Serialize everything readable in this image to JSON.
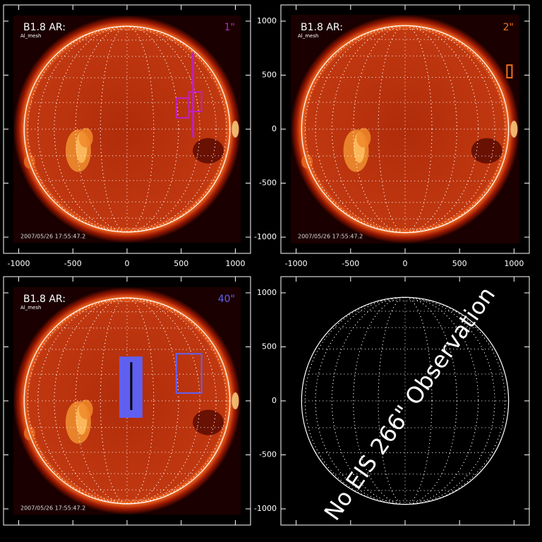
{
  "chart_data": [
    {
      "type": "image",
      "label": "B1.8 AR:",
      "instrument": "Al_mesh",
      "date": "2007/05/26 17:55:47.2",
      "slit": "1\"",
      "slit_color": "#c020c0",
      "xlim": [
        -1140,
        1140
      ],
      "ylim": [
        -1150,
        1150
      ],
      "xticks": [
        -1000,
        -500,
        0,
        500,
        1000
      ],
      "yticks": [
        -1000,
        -500,
        0,
        500,
        1000
      ],
      "xtick_labels": true,
      "ytick_labels": false,
      "shapes": [
        {
          "kind": "rect",
          "color": "#c020c0",
          "x": [
            455,
            571
          ],
          "y": [
            104,
            287
          ]
        },
        {
          "kind": "rect",
          "color": "#c020c0",
          "x": [
            571,
            688
          ],
          "y": [
            163,
            345
          ]
        },
        {
          "kind": "line",
          "color": "#c020c0",
          "x": [
            610,
            610
          ],
          "y": [
            -78,
            710
          ]
        }
      ]
    },
    {
      "type": "image",
      "label": "B1.8 AR:",
      "instrument": "Al_mesh",
      "date": "2007/05/26 17:55:47.2",
      "slit": "2\"",
      "slit_color": "#f07020",
      "xlim": [
        -1140,
        1140
      ],
      "ylim": [
        -1150,
        1150
      ],
      "xticks": [
        -1000,
        -500,
        0,
        500,
        1000
      ],
      "yticks": [
        -1000,
        -500,
        0,
        500,
        1000
      ],
      "xtick_labels": true,
      "ytick_labels": true,
      "shapes": [
        {
          "kind": "rect",
          "color": "#f07020",
          "x": [
            935,
            981
          ],
          "y": [
            476,
            593
          ]
        }
      ]
    },
    {
      "type": "image",
      "label": "B1.8 AR:",
      "instrument": "Al_mesh",
      "date": "2007/05/26 17:55:47.2",
      "slit": "40\"",
      "slit_color": "#6060f0",
      "xlim": [
        -1140,
        1140
      ],
      "ylim": [
        -1150,
        1150
      ],
      "xticks": [
        -1000,
        -500,
        0,
        500,
        1000
      ],
      "yticks": [
        -1000,
        -500,
        0,
        500,
        1000
      ],
      "xtick_labels": false,
      "ytick_labels": false,
      "shapes": [
        {
          "kind": "fill-rect",
          "color": "#6060f0",
          "x": [
            -65,
            136
          ],
          "y": [
            -150,
            404
          ]
        },
        {
          "kind": "line",
          "color": "#000000",
          "x": [
            39,
            39
          ],
          "y": [
            -85,
            358
          ]
        },
        {
          "kind": "rect",
          "color": "#6060f0",
          "x": [
            455,
            688
          ],
          "y": [
            72,
            436
          ]
        }
      ]
    },
    {
      "type": "disc",
      "annotation": "No EIS 266\" Observation",
      "xlim": [
        -1140,
        1140
      ],
      "ylim": [
        -1150,
        1150
      ],
      "xticks": [
        -1000,
        -500,
        0,
        500,
        1000
      ],
      "yticks": [
        -1000,
        -500,
        0,
        500,
        1000
      ],
      "xtick_labels": false,
      "ytick_labels": true
    }
  ]
}
